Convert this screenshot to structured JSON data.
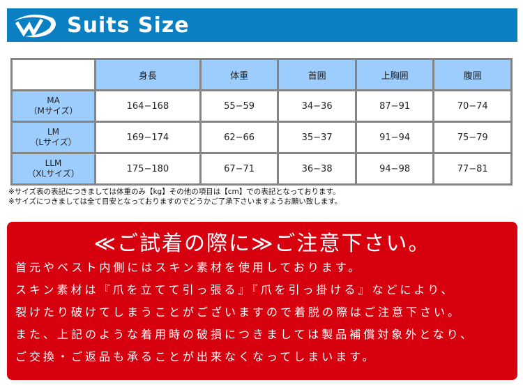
{
  "header": {
    "title": "Suits Size",
    "logo": "wave-w-logo",
    "color": "#0a7fc2"
  },
  "table": {
    "columns": [
      "身長",
      "体重",
      "首囲",
      "上胸囲",
      "腹囲"
    ],
    "rows": [
      {
        "size": "MA",
        "sub": "（Mサイズ）",
        "values": [
          "164−168",
          "55−59",
          "34−36",
          "87−91",
          "70−74"
        ]
      },
      {
        "size": "LM",
        "sub": "（Lサイズ）",
        "values": [
          "169−174",
          "62−66",
          "35−37",
          "91−94",
          "75−79"
        ]
      },
      {
        "size": "LLM",
        "sub": "（XLサイズ）",
        "values": [
          "175−180",
          "67−71",
          "36−38",
          "94−98",
          "77−81"
        ]
      }
    ]
  },
  "notes": [
    "※サイズ表の表記につきましては体重のみ【kg】その他の項目は【cm】での表記となっております。",
    "※サイズにつきましては全て目安となっておりますのでどうかご了承下さいますようお願い致します。"
  ],
  "caution": {
    "title": "≪ご試着の際に≫ご注意下さい。",
    "lines": [
      "首元やベスト内側にはスキン素材を使用しております。",
      "スキン素材は『爪を立てて引っ張る』『爪を引っ掛ける』などにより、",
      "裂けたり破けてしまうことがございますので着脱の際はご注意下さい。",
      "また、上記のような着用時の破損につきましては製品補償対象外となり、",
      "ご交換・ご返品も承ることが出来なくなってしまいます。"
    ],
    "color": "#d7000f"
  }
}
